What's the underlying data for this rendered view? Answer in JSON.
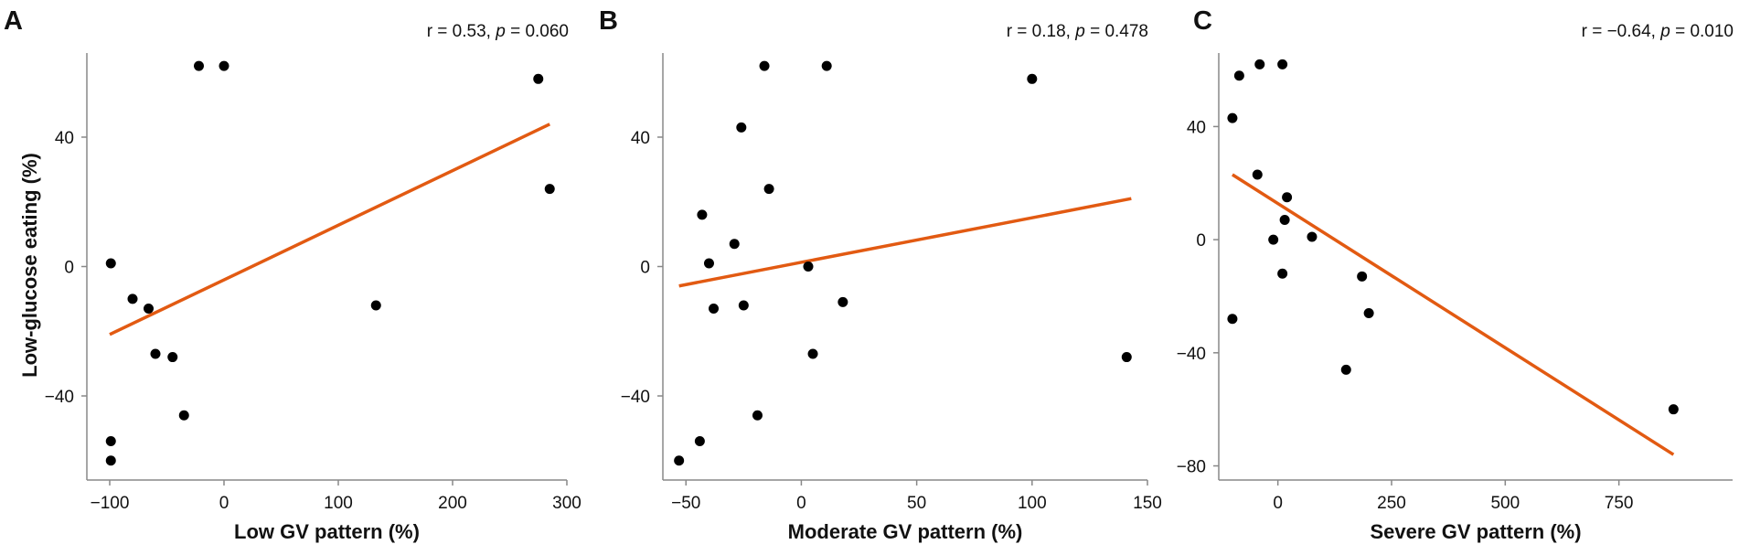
{
  "y_axis_title": "Low-glucose eating (%)",
  "colors": {
    "point": "#000000",
    "fit_line": "#E25A12",
    "axis": "#888888"
  },
  "chart_data": [
    {
      "type": "scatter",
      "panel": "A",
      "stats": {
        "r_prefix": "r = ",
        "r": "0.53",
        "p_prefix": ", ",
        "p_symbol": "p",
        "p_value": " = 0.060"
      },
      "xlabel": "Low GV pattern (%)",
      "ylabel": "Low-glucose eating (%)",
      "xlim": [
        -120,
        300
      ],
      "ylim": [
        -66,
        66
      ],
      "xticks": [
        -100,
        0,
        100,
        200,
        300
      ],
      "xtick_labels": [
        "−100",
        "0",
        "100",
        "200",
        "300"
      ],
      "yticks": [
        -40,
        0,
        40
      ],
      "ytick_labels": [
        "−40",
        "0",
        "40"
      ],
      "points": [
        {
          "x": -22,
          "y": 62
        },
        {
          "x": 0,
          "y": 62
        },
        {
          "x": 275,
          "y": 58
        },
        {
          "x": 285,
          "y": 24
        },
        {
          "x": 133,
          "y": -12
        },
        {
          "x": -99,
          "y": 1
        },
        {
          "x": -80,
          "y": -10
        },
        {
          "x": -66,
          "y": -13
        },
        {
          "x": -60,
          "y": -27
        },
        {
          "x": -45,
          "y": -28
        },
        {
          "x": -35,
          "y": -46
        },
        {
          "x": -99,
          "y": -54
        },
        {
          "x": -99,
          "y": -60
        }
      ],
      "fit_line": {
        "x": [
          -100,
          285
        ],
        "y": [
          -21,
          44
        ]
      }
    },
    {
      "type": "scatter",
      "panel": "B",
      "stats": {
        "r_prefix": "r = ",
        "r": "0.18",
        "p_prefix": ", ",
        "p_symbol": "p",
        "p_value": " = 0.478"
      },
      "xlabel": "Moderate GV pattern (%)",
      "ylabel": "",
      "xlim": [
        -60,
        150
      ],
      "ylim": [
        -66,
        66
      ],
      "xticks": [
        -50,
        0,
        50,
        100,
        150
      ],
      "xtick_labels": [
        "−50",
        "0",
        "50",
        "100",
        "150"
      ],
      "yticks": [
        -40,
        0,
        40
      ],
      "ytick_labels": [
        "−40",
        "0",
        "40"
      ],
      "points": [
        {
          "x": -16,
          "y": 62
        },
        {
          "x": 11,
          "y": 62
        },
        {
          "x": 100,
          "y": 58
        },
        {
          "x": -26,
          "y": 43
        },
        {
          "x": -14,
          "y": 24
        },
        {
          "x": -43,
          "y": 16
        },
        {
          "x": -29,
          "y": 7
        },
        {
          "x": -40,
          "y": 1
        },
        {
          "x": 3,
          "y": 0
        },
        {
          "x": -38,
          "y": -13
        },
        {
          "x": -25,
          "y": -12
        },
        {
          "x": 18,
          "y": -11
        },
        {
          "x": 5,
          "y": -27
        },
        {
          "x": 141,
          "y": -28
        },
        {
          "x": -19,
          "y": -46
        },
        {
          "x": -44,
          "y": -54
        },
        {
          "x": -53,
          "y": -60
        }
      ],
      "fit_line": {
        "x": [
          -53,
          143
        ],
        "y": [
          -6,
          21
        ]
      }
    },
    {
      "type": "scatter",
      "panel": "C",
      "stats": {
        "r_prefix": "r = ",
        "r": "−0.64",
        "p_prefix": ", ",
        "p_symbol": "p",
        "p_value": " = 0.010"
      },
      "xlabel": "Severe GV pattern (%)",
      "ylabel": "",
      "xlim": [
        -130,
        1000
      ],
      "ylim": [
        -85,
        66
      ],
      "xticks": [
        0,
        250,
        500,
        750
      ],
      "xtick_labels": [
        "0",
        "250",
        "500",
        "750"
      ],
      "yticks": [
        -80,
        -40,
        0,
        40
      ],
      "ytick_labels": [
        "−80",
        "−40",
        "0",
        "40"
      ],
      "points": [
        {
          "x": -85,
          "y": 58
        },
        {
          "x": -40,
          "y": 62
        },
        {
          "x": 10,
          "y": 62
        },
        {
          "x": -100,
          "y": 43
        },
        {
          "x": -45,
          "y": 23
        },
        {
          "x": 20,
          "y": 15
        },
        {
          "x": 15,
          "y": 7
        },
        {
          "x": -10,
          "y": 0
        },
        {
          "x": 75,
          "y": 1
        },
        {
          "x": 10,
          "y": -12
        },
        {
          "x": 185,
          "y": -13
        },
        {
          "x": 200,
          "y": -26
        },
        {
          "x": -100,
          "y": -28
        },
        {
          "x": 150,
          "y": -46
        },
        {
          "x": 870,
          "y": -60
        }
      ],
      "fit_line": {
        "x": [
          -100,
          870
        ],
        "y": [
          23,
          -76
        ]
      }
    }
  ]
}
